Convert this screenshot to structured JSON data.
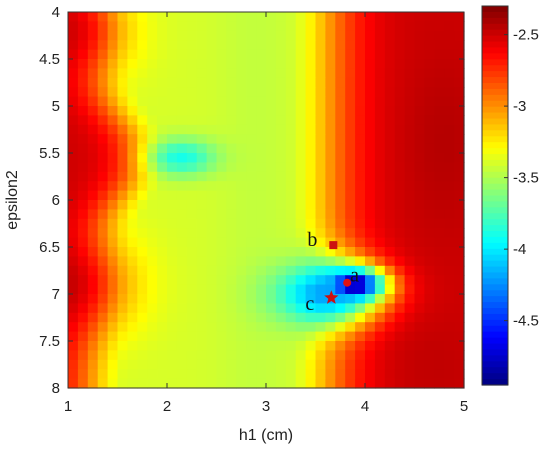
{
  "chart_data": {
    "type": "heatmap",
    "xlabel": "h1 (cm)",
    "ylabel": "epsilon2",
    "xlim": [
      1,
      5
    ],
    "ylim": [
      4,
      8
    ],
    "y_direction": "reversed",
    "x_ticks": [
      "1",
      "2",
      "3",
      "4",
      "5"
    ],
    "y_ticks": [
      "4",
      "4.5",
      "5",
      "5.5",
      "6",
      "6.5",
      "7",
      "7.5",
      "8"
    ],
    "grid": false,
    "colorbar": {
      "colormap": "jet",
      "range": [
        -4.95,
        -2.3
      ],
      "ticks": [
        "-2.5",
        "-3",
        "-3.5",
        "-4",
        "-4.5"
      ],
      "tick_values": [
        -2.5,
        -3,
        -3.5,
        -4,
        -4.5
      ]
    },
    "grid_cells": {
      "nx": 40,
      "ny": 40
    },
    "features": [
      {
        "kind": "min",
        "x": 3.9,
        "y": 6.9,
        "value": -4.95,
        "sx": 0.28,
        "sy": 0.16
      },
      {
        "kind": "min",
        "x": 3.6,
        "y": 7.0,
        "value": -4.2,
        "sx": 0.5,
        "sy": 0.32
      },
      {
        "kind": "min",
        "x": 2.15,
        "y": 5.55,
        "value": -3.9,
        "sx": 0.35,
        "sy": 0.2
      },
      {
        "kind": "max",
        "x": 1.1,
        "y": 6.9,
        "value": -2.3,
        "sx": 0.55,
        "sy": 0.55
      },
      {
        "kind": "max",
        "x": 1.1,
        "y": 4.2,
        "value": -2.35,
        "sx": 0.5,
        "sy": 0.5
      },
      {
        "kind": "max",
        "x": 4.8,
        "y": 5.4,
        "value": -2.4,
        "sx": 0.4,
        "sy": 0.9
      },
      {
        "kind": "max",
        "x": 4.7,
        "y": 7.8,
        "value": -2.45,
        "sx": 0.45,
        "sy": 0.5
      }
    ],
    "points": [
      {
        "label": "a",
        "x": 3.82,
        "y": 6.88,
        "marker": "circle",
        "color": "#e01010"
      },
      {
        "label": "b",
        "x": 3.68,
        "y": 6.48,
        "marker": "square",
        "color": "#cc1010"
      },
      {
        "label": "c",
        "x": 3.66,
        "y": 7.04,
        "marker": "star",
        "color": "#cc1010"
      }
    ]
  }
}
